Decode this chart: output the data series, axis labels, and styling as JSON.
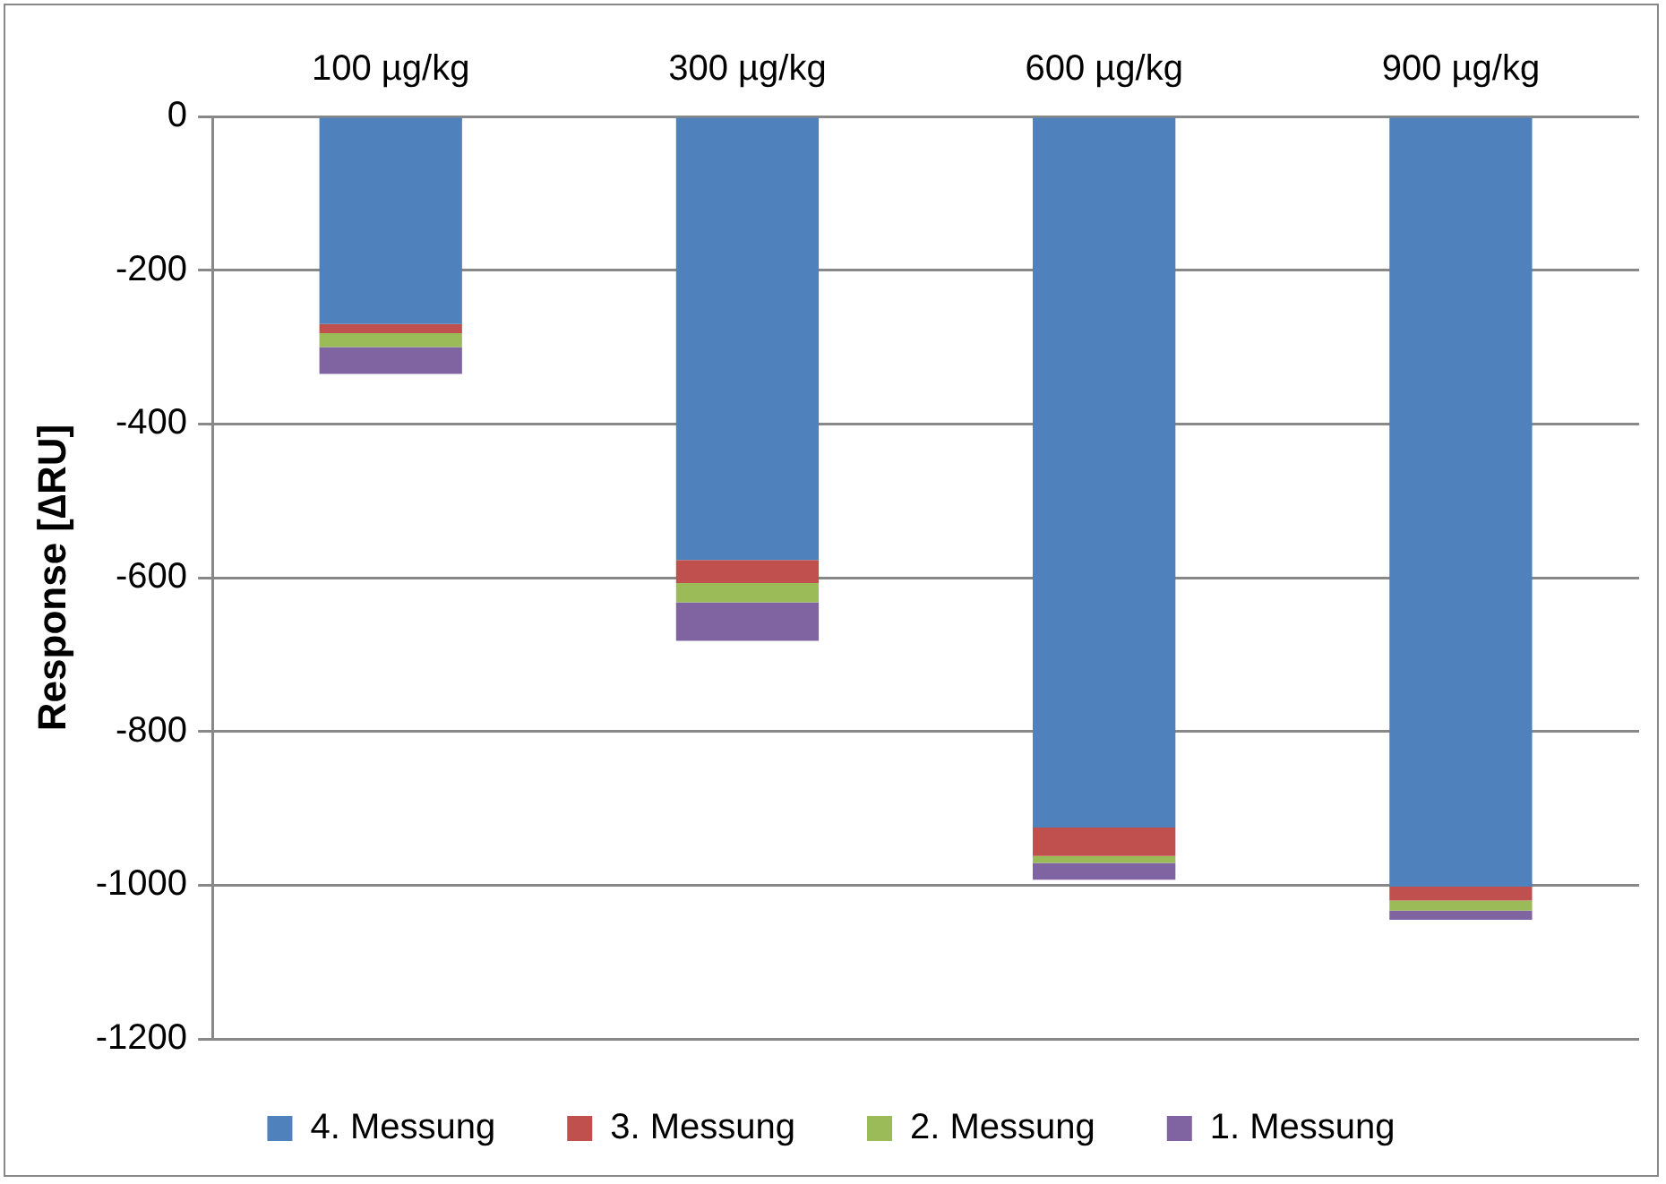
{
  "chart_data": {
    "type": "bar",
    "stacked": true,
    "ylabel": "Response [∆RU]",
    "categories": [
      "100 µg/kg",
      "300 µg/kg",
      "600 µg/kg",
      "900 µg/kg"
    ],
    "series": [
      {
        "name": "4. Messung",
        "color": "#4f81bd",
        "values": [
          -270,
          -577,
          -925,
          -1002
        ]
      },
      {
        "name": "3. Messung",
        "color": "#c0504d",
        "values": [
          -12,
          -30,
          -37,
          -18
        ]
      },
      {
        "name": "2. Messung",
        "color": "#9bbb59",
        "values": [
          -18,
          -25,
          -9,
          -13
        ]
      },
      {
        "name": "1. Messung",
        "color": "#8064a2",
        "values": [
          -35,
          -50,
          -22,
          -12
        ]
      }
    ],
    "ylim": [
      -1200,
      0
    ],
    "yticks": [
      -1200,
      -1000,
      -800,
      -600,
      -400,
      -200,
      0
    ],
    "grid": "y",
    "legend": "bottom"
  }
}
